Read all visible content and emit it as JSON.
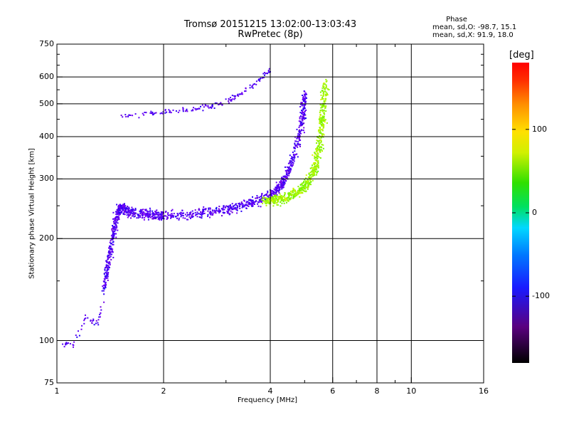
{
  "chart_data": {
    "type": "scatter",
    "title": "Tromsø 20151215 13:02:00-13:03:43",
    "subtitle": "RwPretec (8p)",
    "xlabel": "Frequency [MHz]",
    "ylabel": "Stationary phase Virtual Height [km]",
    "x_scale": "log",
    "y_scale": "log",
    "xlim": [
      1,
      16
    ],
    "ylim": [
      75,
      750
    ],
    "x_ticks": [
      1,
      2,
      4,
      6,
      8,
      10,
      16
    ],
    "x_tick_labels": [
      "1",
      "2",
      "4",
      "6",
      "8",
      "10",
      "16"
    ],
    "x_minor_ticks": [
      3,
      5,
      7,
      9
    ],
    "y_ticks": [
      75,
      100,
      200,
      300,
      400,
      500,
      600,
      750
    ],
    "y_tick_labels": [
      "75",
      "100",
      "200",
      "300",
      "400",
      "500",
      "600",
      "750"
    ],
    "y_minor_ticks": [
      150,
      250,
      350,
      450,
      550,
      650,
      700
    ],
    "grid": true,
    "colorbar": {
      "label": "[deg]",
      "range": [
        -180,
        180
      ],
      "tick_values": [
        100,
        0,
        -100
      ],
      "tick_labels": [
        "100",
        "0",
        "-100"
      ]
    },
    "phase_stats": {
      "header": "Phase",
      "line_o": "mean, sd,O: -98.7, 15.1",
      "line_x": "mean, sd,X:  91.9, 18.0"
    },
    "series": [
      {
        "mode": "O",
        "phase_mean": -98.7,
        "phase_sd": 15.1,
        "trace": [
          {
            "x": 1.35,
            "y": 140
          },
          {
            "x": 1.4,
            "y": 180
          },
          {
            "x": 1.45,
            "y": 220
          },
          {
            "x": 1.5,
            "y": 250
          },
          {
            "x": 1.6,
            "y": 240
          },
          {
            "x": 1.8,
            "y": 237
          },
          {
            "x": 2.0,
            "y": 234
          },
          {
            "x": 2.5,
            "y": 238
          },
          {
            "x": 3.0,
            "y": 244
          },
          {
            "x": 3.5,
            "y": 255
          },
          {
            "x": 4.0,
            "y": 270
          },
          {
            "x": 4.3,
            "y": 290
          },
          {
            "x": 4.6,
            "y": 340
          },
          {
            "x": 4.9,
            "y": 440
          },
          {
            "x": 5.0,
            "y": 540
          }
        ],
        "upper_trace": [
          {
            "x": 1.5,
            "y": 460
          },
          {
            "x": 2.0,
            "y": 475
          },
          {
            "x": 2.5,
            "y": 485
          },
          {
            "x": 3.0,
            "y": 510
          },
          {
            "x": 3.5,
            "y": 560
          },
          {
            "x": 4.0,
            "y": 630
          }
        ],
        "low_cluster": [
          {
            "x": 1.05,
            "y": 98
          },
          {
            "x": 1.1,
            "y": 97
          },
          {
            "x": 1.2,
            "y": 118
          },
          {
            "x": 1.3,
            "y": 112
          },
          {
            "x": 1.35,
            "y": 135
          }
        ]
      },
      {
        "mode": "X",
        "phase_mean": 91.9,
        "phase_sd": 18.0,
        "trace": [
          {
            "x": 3.8,
            "y": 258
          },
          {
            "x": 4.2,
            "y": 262
          },
          {
            "x": 4.6,
            "y": 270
          },
          {
            "x": 5.0,
            "y": 285
          },
          {
            "x": 5.3,
            "y": 320
          },
          {
            "x": 5.5,
            "y": 380
          },
          {
            "x": 5.6,
            "y": 460
          },
          {
            "x": 5.7,
            "y": 580
          }
        ]
      }
    ]
  }
}
